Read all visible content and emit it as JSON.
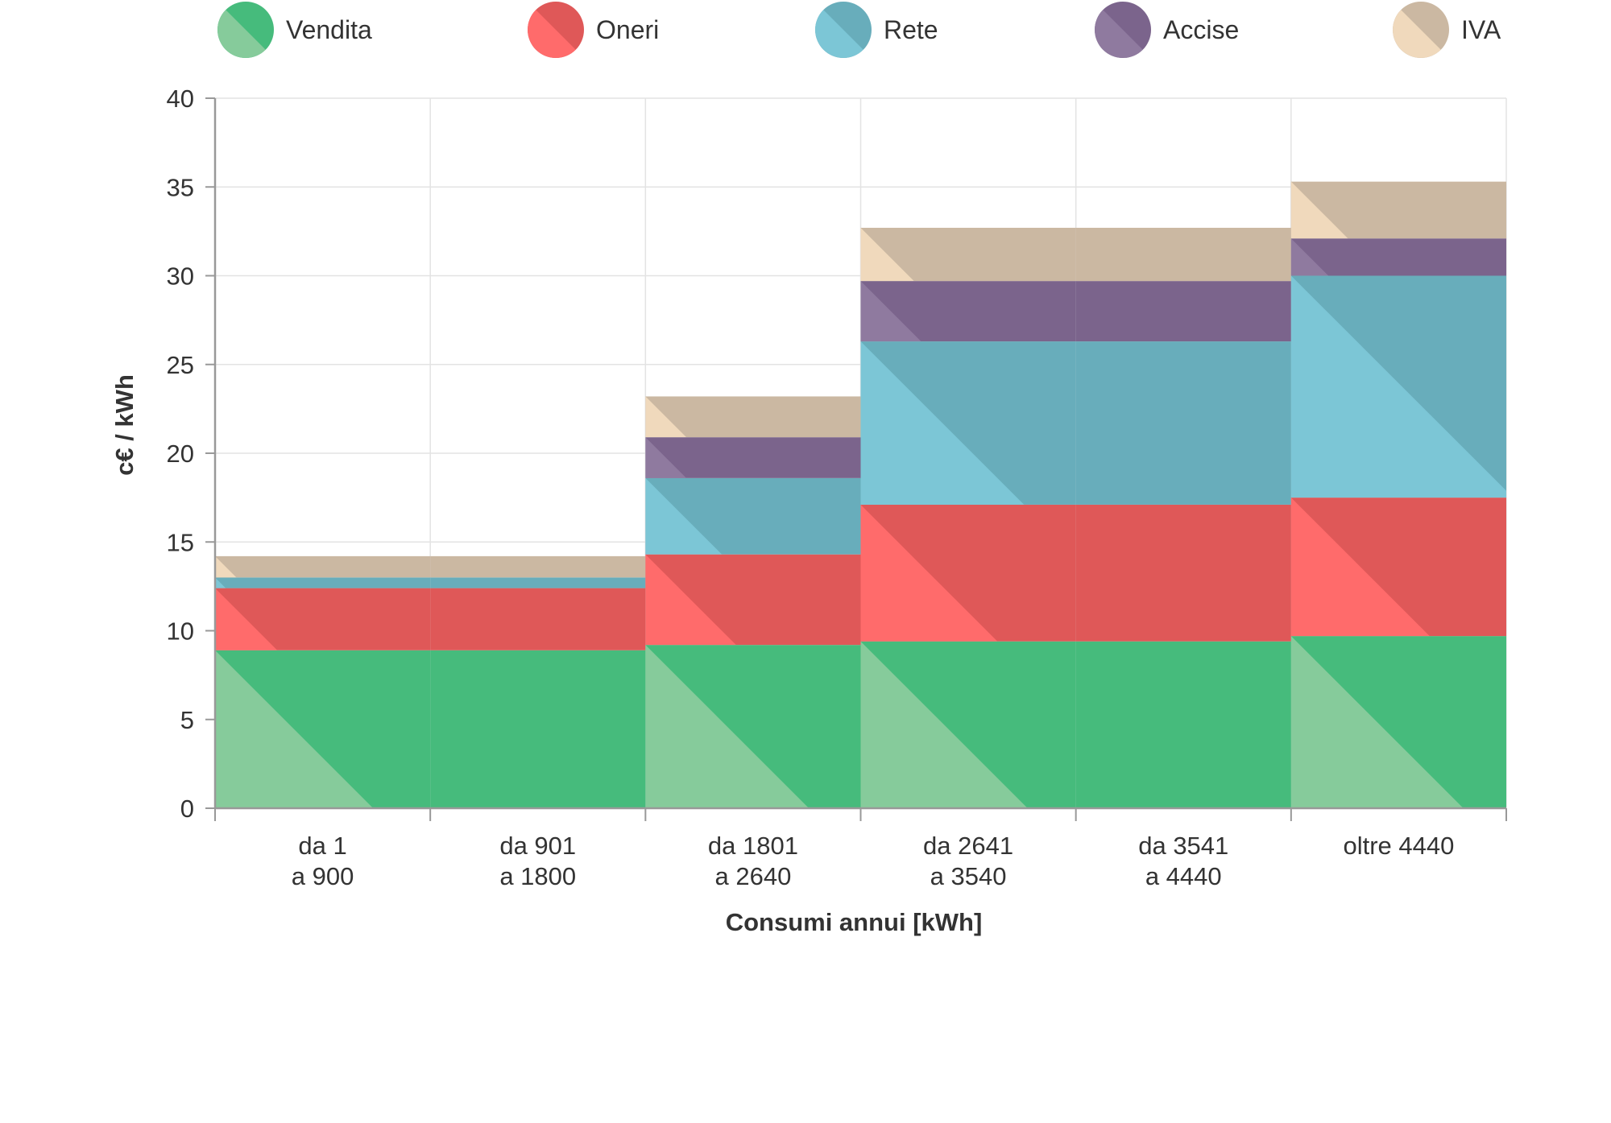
{
  "chart_data": {
    "type": "bar",
    "subtype": "stacked-step",
    "xlabel": "Consumi annui [kWh]",
    "ylabel": "c€ / kWh",
    "ylim": [
      0,
      40
    ],
    "yticks": [
      0,
      5,
      10,
      15,
      20,
      25,
      30,
      35,
      40
    ],
    "grid": true,
    "legend_position": "top",
    "categories": [
      [
        "da 1",
        "a 900"
      ],
      [
        "da 901",
        "a 1800"
      ],
      [
        "da 1801",
        "a 2640"
      ],
      [
        "da 2641",
        "a 3540"
      ],
      [
        "da 3541",
        "a 4440"
      ],
      [
        "oltre 4440"
      ]
    ],
    "series": [
      {
        "name": "Vendita",
        "color": "#46bb7c",
        "light": "#86cb9b",
        "values": [
          8.9,
          8.9,
          9.2,
          9.4,
          9.4,
          9.7
        ]
      },
      {
        "name": "Oneri",
        "color": "#df5858",
        "light": "#ff6b6b",
        "values": [
          3.5,
          3.5,
          5.1,
          7.7,
          7.7,
          7.8
        ]
      },
      {
        "name": "Rete",
        "color": "#68adbb",
        "light": "#7cc6d6",
        "values": [
          0.6,
          0.6,
          4.3,
          9.2,
          9.2,
          12.5
        ]
      },
      {
        "name": "Accise",
        "color": "#7b648c",
        "light": "#8f7a9f",
        "values": [
          0.0,
          0.0,
          2.3,
          3.4,
          3.4,
          2.1
        ]
      },
      {
        "name": "IVA",
        "color": "#cbb8a2",
        "light": "#f0d9bc",
        "values": [
          1.2,
          1.2,
          2.3,
          3.0,
          3.0,
          3.2
        ]
      }
    ]
  }
}
